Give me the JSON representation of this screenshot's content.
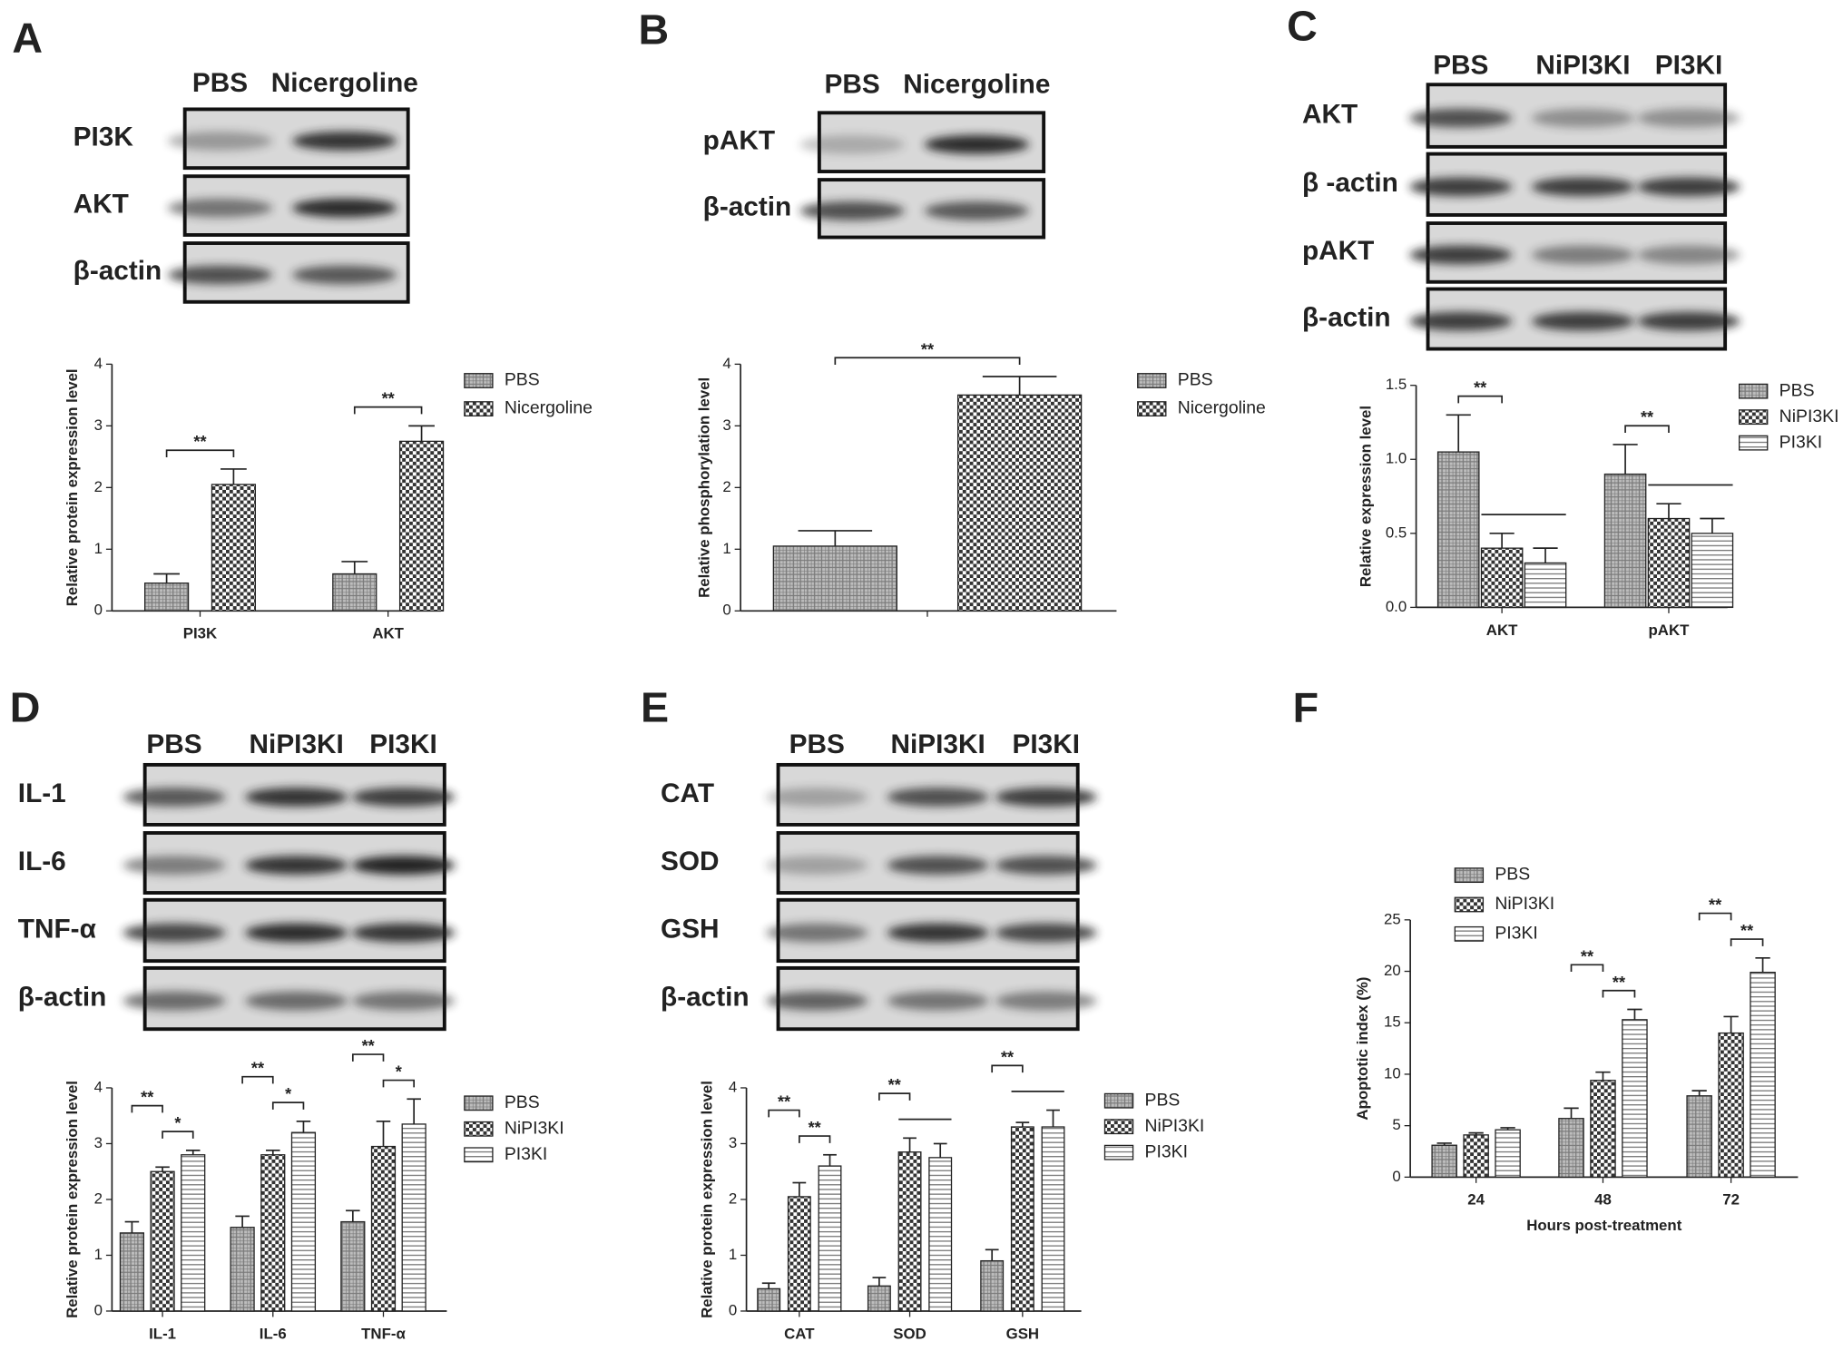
{
  "panels": [
    {
      "letter": "A",
      "lanes": [
        "PBS",
        "Nicergoline"
      ],
      "rows": [
        "PI3K",
        "AKT",
        "β-actin"
      ]
    },
    {
      "letter": "B",
      "lanes": [
        "PBS",
        "Nicergoline"
      ],
      "rows": [
        "pAKT",
        "β-actin"
      ]
    },
    {
      "letter": "C",
      "lanes": [
        "PBS",
        "NiPI3KI",
        "PI3KI"
      ],
      "rows": [
        "AKT",
        "β -actin",
        "pAKT",
        "β-actin"
      ]
    },
    {
      "letter": "D",
      "lanes": [
        "PBS",
        "NiPI3KI",
        "PI3KI"
      ],
      "rows": [
        "IL-1",
        "IL-6",
        "TNF-α",
        "β-actin"
      ]
    },
    {
      "letter": "E",
      "lanes": [
        "PBS",
        "NiPI3KI",
        "PI3KI"
      ],
      "rows": [
        "CAT",
        "SOD",
        "GSH",
        "β-actin"
      ]
    },
    {
      "letter": "F"
    }
  ],
  "chart_data": [
    {
      "type": "bar",
      "ylabel": "Relative protein expression level",
      "categories": [
        "PI3K",
        "AKT"
      ],
      "series": [
        {
          "name": "PBS",
          "color": "#7a7a7a",
          "pattern": "grid",
          "values": [
            0.45,
            0.6
          ],
          "errors": [
            0.15,
            0.2
          ]
        },
        {
          "name": "Nicergoline",
          "color": "#333333",
          "pattern": "checker",
          "values": [
            2.05,
            2.75
          ],
          "errors": [
            0.25,
            0.25
          ]
        }
      ],
      "ylim": [
        0,
        4
      ],
      "yticks": [
        0,
        1,
        2,
        3,
        4
      ],
      "annotations": [
        "**",
        "**"
      ]
    },
    {
      "type": "bar",
      "ylabel": "Relative phosphorylation level",
      "categories": [
        null
      ],
      "series": [
        {
          "name": "PBS",
          "color": "#7a7a7a",
          "pattern": "grid",
          "values": [
            1.05
          ],
          "errors": [
            0.25
          ]
        },
        {
          "name": "Nicergoline",
          "color": "#333333",
          "pattern": "checker",
          "values": [
            3.5
          ],
          "errors": [
            0.3
          ]
        }
      ],
      "ylim": [
        0,
        4
      ],
      "yticks": [
        0,
        1,
        2,
        3,
        4
      ],
      "annotations": [
        "**"
      ]
    },
    {
      "type": "bar",
      "ylabel": "Relative expression level",
      "categories": [
        "AKT",
        "pAKT"
      ],
      "series": [
        {
          "name": "PBS",
          "color": "#7a7a7a",
          "pattern": "grid",
          "values": [
            1.05,
            0.9
          ],
          "errors": [
            0.25,
            0.2
          ]
        },
        {
          "name": "NiPI3KI",
          "color": "#333333",
          "pattern": "checker",
          "values": [
            0.4,
            0.6
          ],
          "errors": [
            0.1,
            0.1
          ]
        },
        {
          "name": "PI3KI",
          "color": "#777777",
          "pattern": "hlines",
          "values": [
            0.3,
            0.5
          ],
          "errors": [
            0.1,
            0.1
          ]
        }
      ],
      "ylim": [
        0,
        1.5
      ],
      "yticks": [
        {
          "value": 0,
          "label": "0.0"
        },
        {
          "value": 0.5,
          "label": "0.5"
        },
        {
          "value": 1,
          "label": "1.0"
        },
        {
          "value": 1.5,
          "label": "1.5"
        }
      ],
      "annotations": [
        "**",
        "**"
      ]
    },
    {
      "type": "bar",
      "ylabel": "Relative protein expression level",
      "categories": [
        "IL-1",
        "IL-6",
        "TNF-α"
      ],
      "series": [
        {
          "name": "PBS",
          "color": "#7a7a7a",
          "pattern": "grid",
          "values": [
            1.4,
            1.5,
            1.6
          ],
          "errors": [
            0.2,
            0.2,
            0.2
          ]
        },
        {
          "name": "NiPI3KI",
          "color": "#333333",
          "pattern": "checker",
          "values": [
            2.5,
            2.8,
            2.95
          ],
          "errors": [
            0.08,
            0.08,
            0.45
          ]
        },
        {
          "name": "PI3KI",
          "color": "#777777",
          "pattern": "hlines",
          "values": [
            2.8,
            3.2,
            3.35
          ],
          "errors": [
            0.08,
            0.2,
            0.45
          ]
        }
      ],
      "ylim": [
        0,
        4
      ],
      "yticks": [
        0,
        1,
        2,
        3,
        4
      ],
      "annotations": [
        "**",
        "*",
        "**",
        "*",
        "**",
        "*"
      ]
    },
    {
      "type": "bar",
      "ylabel": "Relative protein expression level",
      "categories": [
        "CAT",
        "SOD",
        "GSH"
      ],
      "series": [
        {
          "name": "PBS",
          "color": "#7a7a7a",
          "pattern": "grid",
          "values": [
            0.4,
            0.45,
            0.9
          ],
          "errors": [
            0.1,
            0.15,
            0.2
          ]
        },
        {
          "name": "NiPI3KI",
          "color": "#333333",
          "pattern": "checker",
          "values": [
            2.05,
            2.85,
            3.3
          ],
          "errors": [
            0.25,
            0.25,
            0.08
          ]
        },
        {
          "name": "PI3KI",
          "color": "#777777",
          "pattern": "hlines",
          "values": [
            2.6,
            2.75,
            3.3
          ],
          "errors": [
            0.2,
            0.25,
            0.3
          ]
        }
      ],
      "ylim": [
        0,
        4
      ],
      "yticks": [
        0,
        1,
        2,
        3,
        4
      ],
      "annotations": [
        "**",
        "**",
        "**",
        "**"
      ]
    },
    {
      "type": "bar",
      "ylabel": "Apoptotic index (%)",
      "xlabel": "Hours post-treatment",
      "categories": [
        "24",
        "48",
        "72"
      ],
      "series": [
        {
          "name": "PBS",
          "color": "#7a7a7a",
          "pattern": "grid",
          "values": [
            3.1,
            5.7,
            7.9
          ],
          "errors": [
            0.2,
            1.0,
            0.5
          ]
        },
        {
          "name": "NiPI3KI",
          "color": "#333333",
          "pattern": "checker",
          "values": [
            4.1,
            9.4,
            14.0
          ],
          "errors": [
            0.2,
            0.8,
            1.6
          ]
        },
        {
          "name": "PI3KI",
          "color": "#777777",
          "pattern": "hlines",
          "values": [
            4.6,
            15.3,
            19.9
          ],
          "errors": [
            0.2,
            1.0,
            1.4
          ]
        }
      ],
      "ylim": [
        0,
        25
      ],
      "yticks": [
        0,
        5,
        10,
        15,
        20,
        25
      ],
      "annotations": [
        "**",
        "**",
        "**",
        "**"
      ]
    }
  ]
}
